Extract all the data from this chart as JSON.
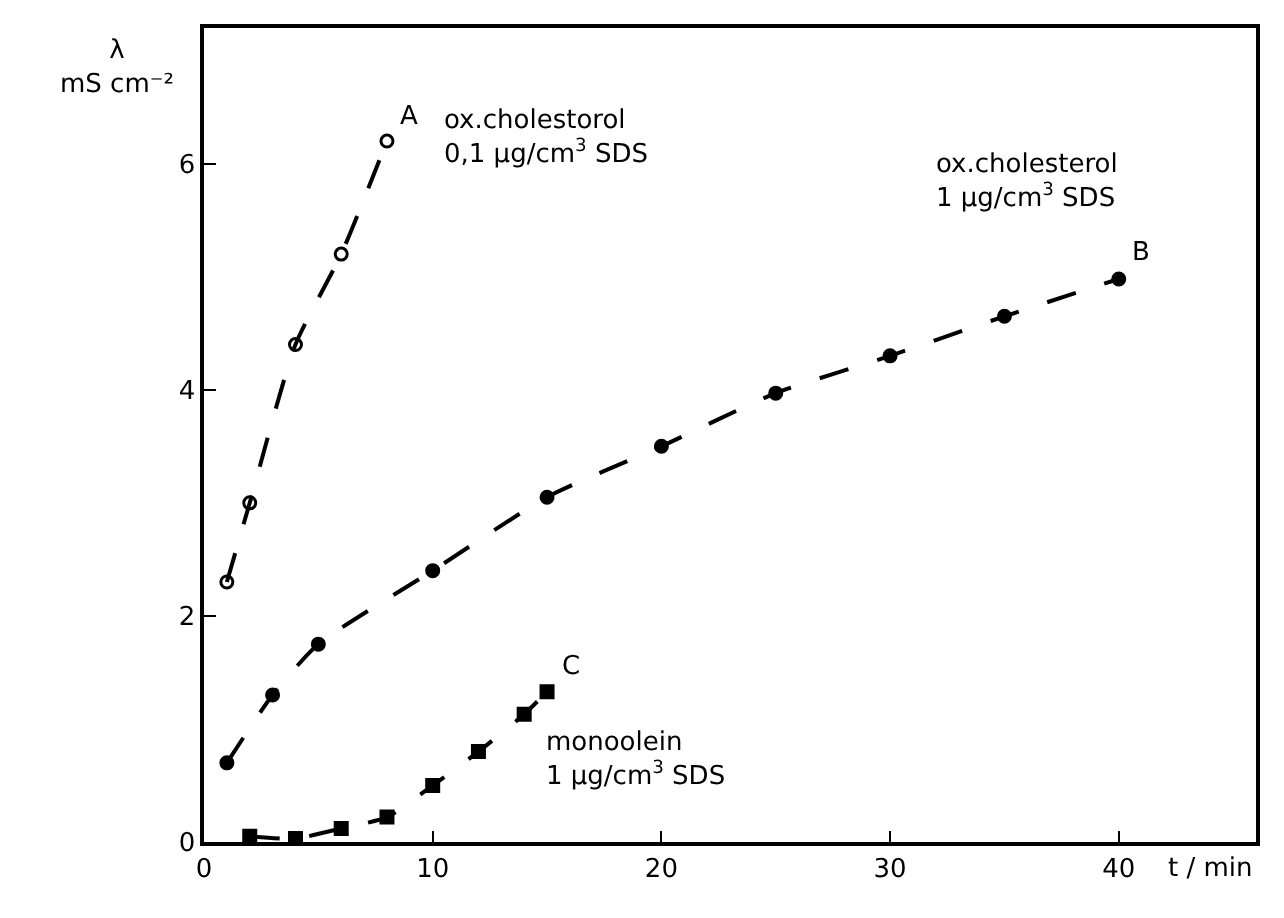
{
  "chart_data": {
    "type": "line",
    "ylabel": "λ\nmS cm⁻²",
    "xlabel": "t / min",
    "xlim": [
      0,
      46
    ],
    "ylim": [
      0,
      7.2
    ],
    "xticks": [
      0,
      10,
      20,
      30,
      40
    ],
    "yticks": [
      0,
      2,
      4,
      6
    ],
    "grid": false,
    "legend": false,
    "line_style": "dashed",
    "series": [
      {
        "name": "A",
        "color": "#000000",
        "marker": "circle-open",
        "x": [
          1,
          2,
          4,
          6,
          8
        ],
        "values": [
          2.3,
          3.0,
          4.4,
          5.2,
          6.2
        ]
      },
      {
        "name": "B",
        "color": "#000000",
        "marker": "circle",
        "x": [
          1,
          3,
          5,
          10,
          15,
          20,
          25,
          30,
          35,
          40
        ],
        "values": [
          0.7,
          1.3,
          1.75,
          2.4,
          3.05,
          3.5,
          3.97,
          4.3,
          4.65,
          4.98
        ]
      },
      {
        "name": "C",
        "color": "#000000",
        "marker": "square",
        "x": [
          2,
          4,
          6,
          8,
          10,
          12,
          14,
          15
        ],
        "values": [
          0.05,
          0.03,
          0.12,
          0.22,
          0.5,
          0.8,
          1.13,
          1.33
        ]
      }
    ],
    "annotations": [
      "ox.cholestorol\n0,1 µg/cm$^{3}$ SDS",
      "ox.cholesterol\n1 µg/cm$^{3}$ SDS",
      "monoolein\n1 µg/cm$^{3}$ SDS"
    ]
  }
}
